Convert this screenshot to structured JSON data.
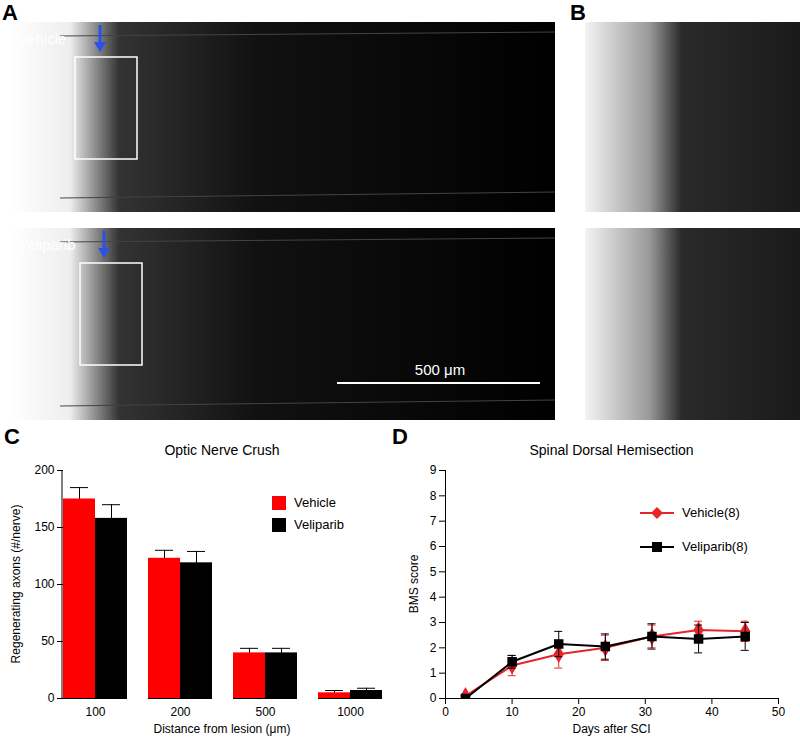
{
  "panel_labels": [
    "A",
    "B",
    "C",
    "D"
  ],
  "images": {
    "labels": [
      "Vehicle",
      "Veliparib"
    ],
    "scale_bar": "500 μm"
  },
  "chart_data": [
    {
      "type": "bar",
      "title": "Optic Nerve Crush",
      "x_label": "Distance from lesion (μm)",
      "y_label": "Regenerating axons (#/nerve)",
      "categories": [
        "100",
        "200",
        "500",
        "1000"
      ],
      "series": [
        {
          "name": "Vehicle",
          "color": "#ff0000",
          "values": [
            175,
            123,
            40,
            5
          ],
          "errors": [
            10,
            7,
            4,
            2
          ]
        },
        {
          "name": "Veliparib",
          "color": "#000000",
          "values": [
            158,
            119,
            40,
            7
          ],
          "errors": [
            12,
            10,
            4,
            2
          ]
        }
      ],
      "ylim": [
        0,
        200
      ],
      "yticks": [
        0,
        50,
        100,
        150,
        200
      ],
      "legend": "top-right"
    },
    {
      "type": "line",
      "title": "Spinal Dorsal Hemisection",
      "x_label": "Days after SCI",
      "y_label": "BMS score",
      "x": [
        3,
        10,
        17,
        24,
        31,
        38,
        45
      ],
      "series": [
        {
          "name": "Vehicle(8)",
          "color": "#e8242b",
          "marker": "diamond",
          "values": [
            0.1,
            1.3,
            1.75,
            2.0,
            2.45,
            2.7,
            2.65
          ],
          "errors": [
            0.05,
            0.4,
            0.55,
            0.5,
            0.45,
            0.35,
            0.4
          ]
        },
        {
          "name": "Veliparib(8)",
          "color": "#000000",
          "marker": "square",
          "values": [
            0,
            1.45,
            2.15,
            2.05,
            2.45,
            2.35,
            2.45
          ],
          "errors": [
            0.05,
            0.25,
            0.5,
            0.5,
            0.5,
            0.55,
            0.55
          ]
        }
      ],
      "xlim": [
        0,
        50
      ],
      "xticks": [
        0,
        10,
        20,
        30,
        40,
        50
      ],
      "ylim": [
        0,
        9
      ],
      "yticks": [
        0,
        1,
        2,
        3,
        4,
        5,
        6,
        7,
        8,
        9
      ],
      "legend": "top-right"
    }
  ]
}
